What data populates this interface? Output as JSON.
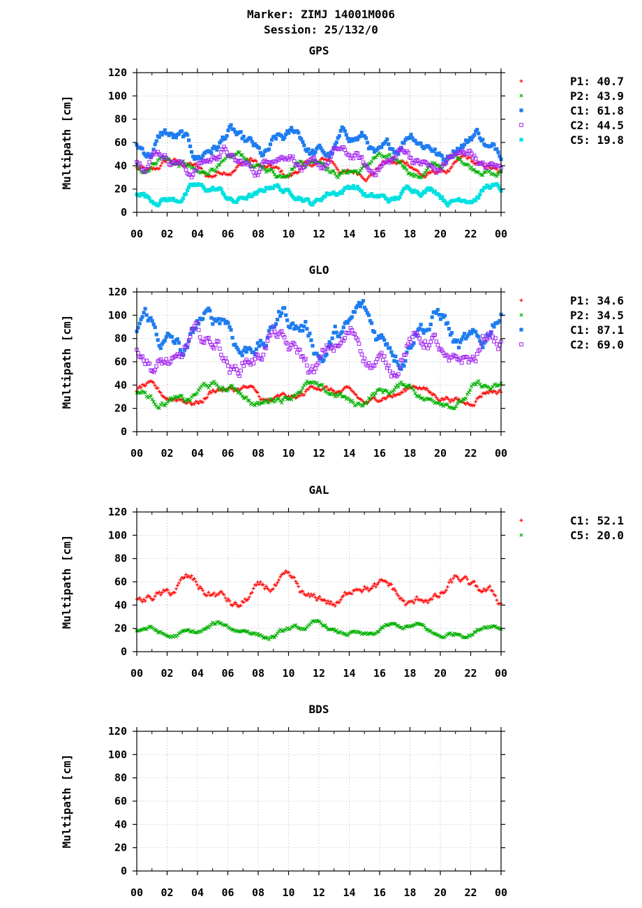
{
  "header": {
    "line1": "Marker: ZIMJ 14001M006",
    "line2": "Session: 25/132/0"
  },
  "colors": {
    "red": "#ff0000",
    "green": "#00b000",
    "blue": "#1e7cf0",
    "purple": "#a020f0",
    "cyan": "#00e0e0"
  },
  "chart_data": [
    {
      "type": "scatter",
      "title": "GPS",
      "ylabel": "Multipath [cm]",
      "xlabel": "",
      "xlim": [
        0,
        24
      ],
      "ylim": [
        0,
        120
      ],
      "x_ticks": [
        "00",
        "02",
        "04",
        "06",
        "08",
        "10",
        "12",
        "14",
        "16",
        "18",
        "20",
        "22",
        "00"
      ],
      "y_ticks": [
        "0",
        "20",
        "40",
        "60",
        "80",
        "100",
        "120"
      ],
      "grid": true,
      "legend_position": "right",
      "series": [
        {
          "name": "P1",
          "legend_text": "P1: 40.7",
          "color": "#ff0000",
          "marker": "plus",
          "rms": 40.7
        },
        {
          "name": "P2",
          "legend_text": "P2: 43.9",
          "color": "#00b000",
          "marker": "cross",
          "rms": 43.9
        },
        {
          "name": "C1",
          "legend_text": "C1: 61.8",
          "color": "#1e7cf0",
          "marker": "square",
          "rms": 61.8
        },
        {
          "name": "C2",
          "legend_text": "C2: 44.5",
          "color": "#a020f0",
          "marker": "open-square",
          "rms": 44.5
        },
        {
          "name": "C5",
          "legend_text": "C5: 19.8",
          "color": "#00e0e0",
          "marker": "square",
          "rms": 19.8
        }
      ]
    },
    {
      "type": "scatter",
      "title": "GLO",
      "ylabel": "Multipath [cm]",
      "xlabel": "",
      "xlim": [
        0,
        24
      ],
      "ylim": [
        0,
        120
      ],
      "x_ticks": [
        "00",
        "02",
        "04",
        "06",
        "08",
        "10",
        "12",
        "14",
        "16",
        "18",
        "20",
        "22",
        "00"
      ],
      "y_ticks": [
        "0",
        "20",
        "40",
        "60",
        "80",
        "100",
        "120"
      ],
      "grid": true,
      "legend_position": "right",
      "series": [
        {
          "name": "P1",
          "legend_text": "P1: 34.6",
          "color": "#ff0000",
          "marker": "plus",
          "rms": 34.6
        },
        {
          "name": "P2",
          "legend_text": "P2: 34.5",
          "color": "#00b000",
          "marker": "cross",
          "rms": 34.5
        },
        {
          "name": "C1",
          "legend_text": "C1: 87.1",
          "color": "#1e7cf0",
          "marker": "square",
          "rms": 87.1
        },
        {
          "name": "C2",
          "legend_text": "C2: 69.0",
          "color": "#a020f0",
          "marker": "open-square",
          "rms": 69.0
        }
      ]
    },
    {
      "type": "scatter",
      "title": "GAL",
      "ylabel": "Multipath [cm]",
      "xlabel": "",
      "xlim": [
        0,
        24
      ],
      "ylim": [
        0,
        120
      ],
      "x_ticks": [
        "00",
        "02",
        "04",
        "06",
        "08",
        "10",
        "12",
        "14",
        "16",
        "18",
        "20",
        "22",
        "00"
      ],
      "y_ticks": [
        "0",
        "20",
        "40",
        "60",
        "80",
        "100",
        "120"
      ],
      "grid": true,
      "legend_position": "right",
      "series": [
        {
          "name": "C1",
          "legend_text": "C1: 52.1",
          "color": "#ff0000",
          "marker": "plus",
          "rms": 52.1
        },
        {
          "name": "C5",
          "legend_text": "C5: 20.0",
          "color": "#00b000",
          "marker": "cross",
          "rms": 20.0
        }
      ]
    },
    {
      "type": "scatter",
      "title": "BDS",
      "ylabel": "Multipath [cm]",
      "xlabel": "",
      "xlim": [
        0,
        24
      ],
      "ylim": [
        0,
        120
      ],
      "x_ticks": [
        "00",
        "02",
        "04",
        "06",
        "08",
        "10",
        "12",
        "14",
        "16",
        "18",
        "20",
        "22",
        "00"
      ],
      "y_ticks": [
        "0",
        "20",
        "40",
        "60",
        "80",
        "100",
        "120"
      ],
      "grid": true,
      "legend_position": "right",
      "series": []
    }
  ]
}
